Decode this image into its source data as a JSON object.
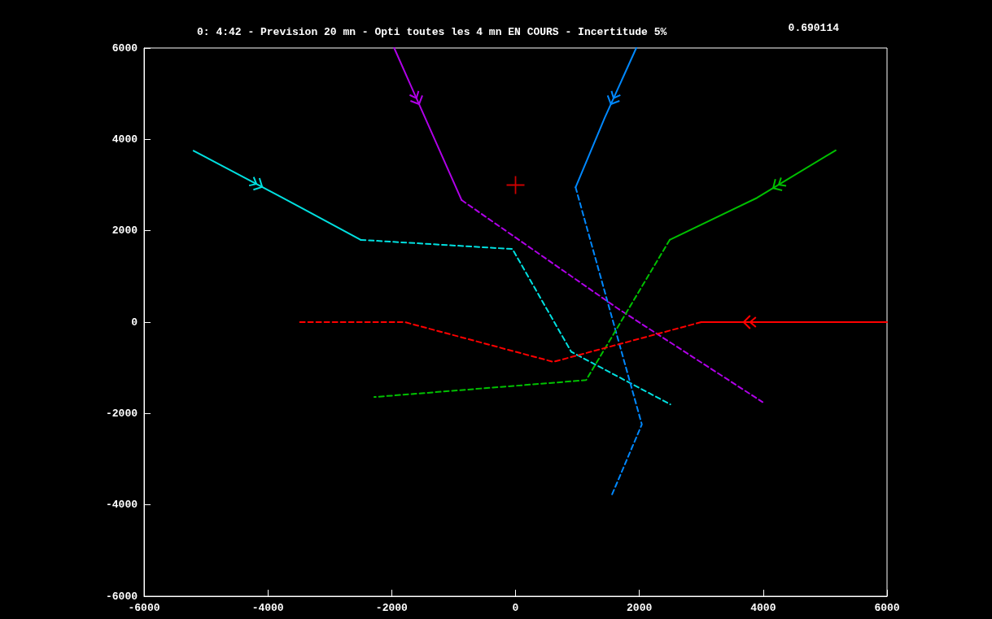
{
  "chart_data": {
    "type": "line",
    "title": "0: 4:42 - Prevision 20 mn - Opti toutes les 4 mn EN COURS - Incertitude 5%",
    "annotations": [
      "0.690114"
    ],
    "xlim": [
      -6000,
      6000
    ],
    "xticks": [
      -6000,
      -4000,
      -2000,
      0,
      2000,
      4000,
      6000
    ],
    "ylim": [
      -6000,
      6000
    ],
    "yticks": [
      -6000,
      -4000,
      -2000,
      0,
      2000,
      4000,
      6000
    ],
    "grid": false,
    "marker": "none",
    "series": [
      {
        "color": "#00e0e0",
        "line_style": "solid",
        "x": [
          -5200,
          -3800,
          -2500
        ],
        "values": [
          3750,
          2750,
          1800
        ]
      },
      {
        "color": "#00e0e0",
        "line_style": "dashed",
        "x": [
          -2500,
          -50,
          900,
          2500
        ],
        "values": [
          1800,
          1600,
          -650,
          -1800
        ]
      },
      {
        "color": "#b000e8",
        "line_style": "solid",
        "x": [
          -1960,
          -1460,
          -870
        ],
        "values": [
          6000,
          4470,
          2670
        ]
      },
      {
        "color": "#b000e8",
        "line_style": "dashed",
        "x": [
          -870,
          1660,
          3990
        ],
        "values": [
          2670,
          290,
          -1750
        ]
      },
      {
        "color": "#0088ff",
        "line_style": "solid",
        "x": [
          1950,
          1440,
          970
        ],
        "values": [
          6000,
          4470,
          2950
        ]
      },
      {
        "color": "#0088ff",
        "line_style": "dashed",
        "x": [
          970,
          2040,
          1560
        ],
        "values": [
          2950,
          -2240,
          -3770
        ]
      },
      {
        "color": "#00c000",
        "line_style": "solid",
        "x": [
          5170,
          3900,
          2490
        ],
        "values": [
          3760,
          2720,
          1800
        ]
      },
      {
        "color": "#00c000",
        "line_style": "dashed",
        "x": [
          2490,
          1140,
          -2280
        ],
        "values": [
          1800,
          -1270,
          -1640
        ]
      },
      {
        "color": "#ff0000",
        "line_style": "solid",
        "x": [
          6000,
          3000
        ],
        "values": [
          0,
          0
        ]
      },
      {
        "color": "#ff0000",
        "line_style": "dashed",
        "x": [
          3000,
          610,
          -1790,
          -3490
        ],
        "values": [
          0,
          -870,
          0,
          0
        ]
      },
      {
        "type": "scatter",
        "color": "#ff0000",
        "marker": "cross",
        "x": [
          0
        ],
        "values": [
          3000
        ]
      }
    ]
  }
}
